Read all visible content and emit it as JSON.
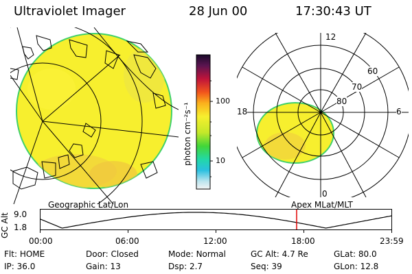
{
  "header": {
    "title": "Ultraviolet Imager",
    "date": "28 Jun 00",
    "time": "17:30:43 UT"
  },
  "colorbar": {
    "ticks": [
      "100",
      "10"
    ],
    "unit_label": "photon cm⁻²s⁻¹"
  },
  "polar": {
    "mlt_labels": [
      "12",
      "18",
      "6",
      "0"
    ],
    "lat_labels": [
      "60",
      "70",
      "80"
    ]
  },
  "panels": {
    "left_caption": "Geographic Lat/Lon",
    "right_caption": "Apex MLat/MLT"
  },
  "altitude_plot": {
    "ylabel": "GC Alt",
    "yticks": [
      "9.0",
      "1.8"
    ],
    "xticks": [
      "00:00",
      "06:00",
      "12:00",
      "18:00",
      "23:59"
    ],
    "current_time_hours": 17.51
  },
  "footer": {
    "row1": [
      {
        "key": "Flt:",
        "val": "HOME"
      },
      {
        "key": "Door:",
        "val": "Closed"
      },
      {
        "key": "Mode:",
        "val": "Normal"
      },
      {
        "key": "GC Alt:",
        "val": "4.7 Re"
      },
      {
        "key": "GLat:",
        "val": "80.0"
      }
    ],
    "row2": [
      {
        "key": "IP:",
        "val": "36.0"
      },
      {
        "key": "Gain:",
        "val": "13"
      },
      {
        "key": "Dsp:",
        "val": "2.7"
      },
      {
        "key": "Seq:",
        "val": "39"
      },
      {
        "key": "GLon:",
        "val": "12.8"
      }
    ]
  }
}
